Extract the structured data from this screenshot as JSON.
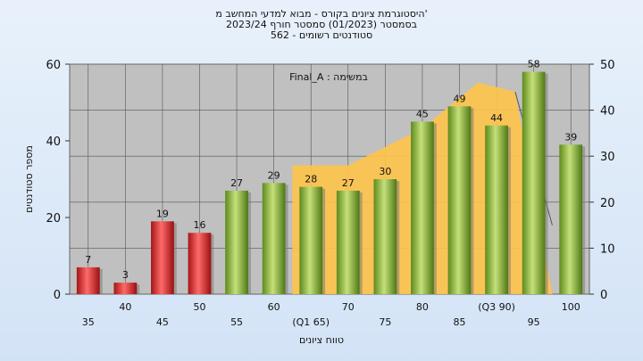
{
  "titles": {
    "line1": "היסטוגרמת ציונים בקורס - מבוא למדעי המחשב מ'",
    "line2": "בסמסטר  (01/2023)  סמסטר חורף  2023/24",
    "line3": "562 - סטודנטים רשומים"
  },
  "chart_data": {
    "type": "bar",
    "categories": [
      "35",
      "40",
      "45",
      "50",
      "55",
      "60",
      "(Q1 65)",
      "70",
      "75",
      "80",
      "85",
      "(Q3 90)",
      "95",
      "100"
    ],
    "values": [
      7,
      3,
      19,
      16,
      27,
      29,
      28,
      27,
      30,
      45,
      49,
      44,
      58,
      39
    ],
    "bar_colors": [
      "#d62a2a",
      "#d62a2a",
      "#d62a2a",
      "#d62a2a",
      "#8fb83a",
      "#8fb83a",
      "#8fb83a",
      "#8fb83a",
      "#8fb83a",
      "#8fb83a",
      "#8fb83a",
      "#8fb83a",
      "#8fb83a",
      "#8fb83a"
    ],
    "xlabel": "טווח ציונים",
    "ylabel": "מספר סטודנטים",
    "ylim": [
      0,
      60
    ],
    "yticks": [
      0,
      20,
      40,
      60
    ],
    "y2lim": [
      0,
      50
    ],
    "y2ticks": [
      0,
      10,
      20,
      30,
      40,
      50
    ],
    "area": {
      "color": "#ffc44a",
      "points": [
        [
          5.5,
          0
        ],
        [
          5.5,
          28
        ],
        [
          7,
          28
        ],
        [
          9,
          36
        ],
        [
          10.5,
          46
        ],
        [
          11.5,
          44
        ],
        [
          12.5,
          0
        ]
      ]
    },
    "annotation": "Final_A : במשימה",
    "grid": true
  }
}
